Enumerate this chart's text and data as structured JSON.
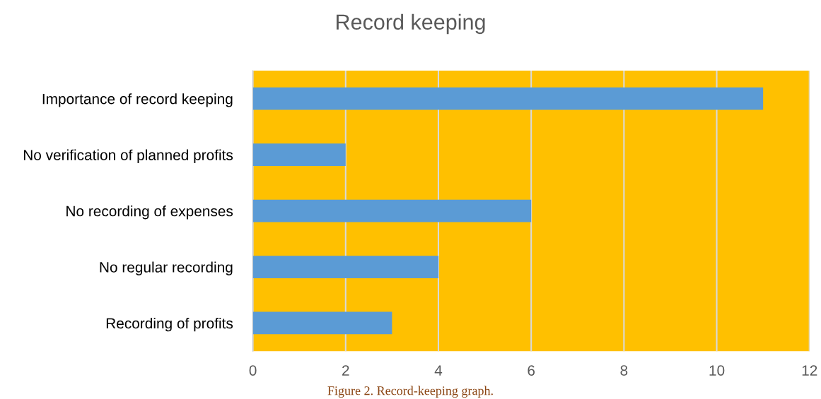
{
  "chart_data": {
    "type": "bar",
    "orientation": "horizontal",
    "title": "Record keeping",
    "categories": [
      "Importance of record keeping",
      "No verification of planned profits",
      "No recording of expenses",
      "No regular recording",
      "Recording of profits"
    ],
    "values": [
      11,
      2,
      6,
      4,
      3
    ],
    "color": "#5b9bd5",
    "xlim": [
      0,
      12
    ],
    "xticks": [
      0,
      2,
      4,
      6,
      8,
      10,
      12
    ],
    "grid": "x",
    "annotations": [
      "Figure 2. Record-keeping graph."
    ]
  }
}
